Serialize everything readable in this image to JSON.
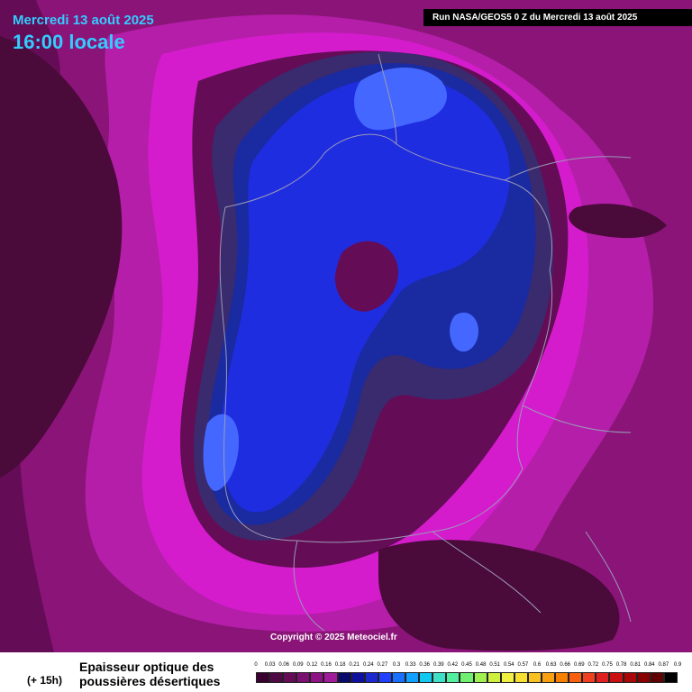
{
  "header": {
    "date": "Mercredi 13 août 2025",
    "time": "16:00 locale",
    "run": "Run NASA/GEOS5 0 Z du Mercredi 13 août 2025"
  },
  "map": {
    "copyright": "Copyright © 2025 Meteociel.fr",
    "colors": {
      "deep": "#4a0a3a",
      "dark": "#640c56",
      "mid": "#8a1478",
      "bright": "#b41ea8",
      "magenta": "#d41ccc",
      "slate": "#3a2a6e",
      "navy": "#1a2aa0",
      "blue": "#1f2de0",
      "lightblue": "#4468ff",
      "border": "#9a9ab8"
    }
  },
  "legend": {
    "lead_time": "(+ 15h)",
    "title_line1": "Epaisseur optique des",
    "title_line2": "poussières désertiques",
    "ticks": [
      "0",
      "0.03",
      "0.06",
      "0.09",
      "0.12",
      "0.16",
      "0.18",
      "0.21",
      "0.24",
      "0.27",
      "0.3",
      "0.33",
      "0.36",
      "0.39",
      "0.42",
      "0.45",
      "0.48",
      "0.51",
      "0.54",
      "0.57",
      "0.6",
      "0.63",
      "0.66",
      "0.69",
      "0.72",
      "0.75",
      "0.78",
      "0.81",
      "0.84",
      "0.87",
      "0.9"
    ],
    "swatches": [
      "#3a0030",
      "#4d0a44",
      "#640c56",
      "#7a1070",
      "#8e1486",
      "#a01c9a",
      "#0a0a6a",
      "#1010a0",
      "#1a2ad0",
      "#2040ff",
      "#1870ff",
      "#10a0ff",
      "#10c8f0",
      "#40e0c8",
      "#50f0a0",
      "#70f070",
      "#a0f050",
      "#d0f040",
      "#f0f040",
      "#f8e030",
      "#f8c020",
      "#f8a010",
      "#f88000",
      "#f86010",
      "#f04020",
      "#e02020",
      "#c81010",
      "#a80808",
      "#880000",
      "#600000",
      "#000000"
    ]
  }
}
